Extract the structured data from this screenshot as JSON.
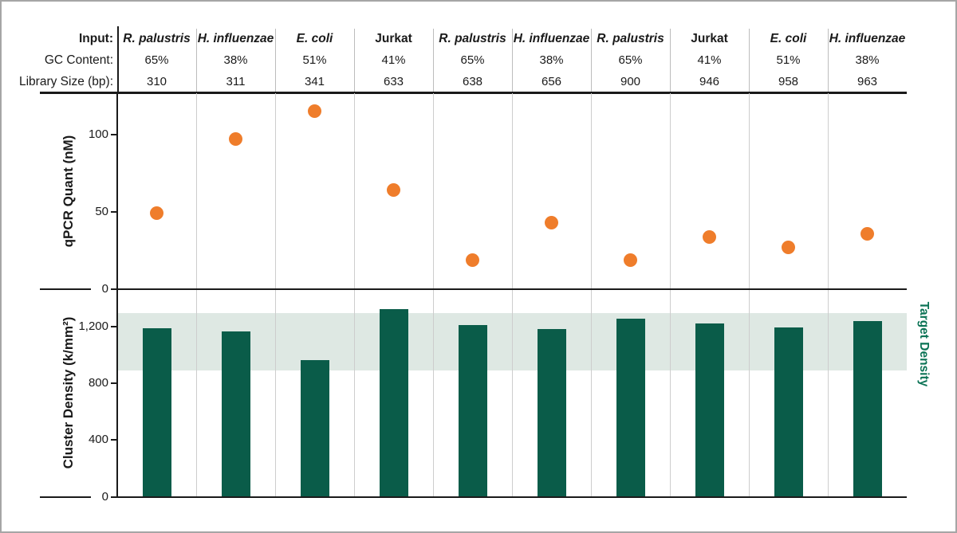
{
  "header": {
    "rows": [
      "Input:",
      "GC Content:",
      "Library Size (bp):"
    ],
    "columns": [
      {
        "input": "R. palustris",
        "italic": true,
        "gc": "65%",
        "library_size": "310"
      },
      {
        "input": "H. influenzae",
        "italic": true,
        "gc": "38%",
        "library_size": "311"
      },
      {
        "input": "E. coli",
        "italic": true,
        "gc": "51%",
        "library_size": "341"
      },
      {
        "input": "Jurkat",
        "italic": false,
        "gc": "41%",
        "library_size": "633"
      },
      {
        "input": "R. palustris",
        "italic": true,
        "gc": "65%",
        "library_size": "638"
      },
      {
        "input": "H. influenzae",
        "italic": true,
        "gc": "38%",
        "library_size": "656"
      },
      {
        "input": "R. palustris",
        "italic": true,
        "gc": "65%",
        "library_size": "900"
      },
      {
        "input": "Jurkat",
        "italic": false,
        "gc": "41%",
        "library_size": "946"
      },
      {
        "input": "E. coli",
        "italic": true,
        "gc": "51%",
        "library_size": "958"
      },
      {
        "input": "H. influenzae",
        "italic": true,
        "gc": "38%",
        "library_size": "963"
      }
    ]
  },
  "colors": {
    "dot_orange": "#EF7D2B",
    "bar_green": "#0A5C49",
    "band_fill": "#DEE8E3",
    "target_label_green": "#0B7355",
    "gridline": "#CDCDCD",
    "axis": "#1A1A1A"
  },
  "chart_data": [
    {
      "type": "scatter",
      "title": "",
      "ylabel": "qPCR Quant (nM)",
      "categories": [
        "R. palustris 310",
        "H. influenzae 311",
        "E. coli 341",
        "Jurkat 633",
        "R. palustris 638",
        "H. influenzae 656",
        "R. palustris 900",
        "Jurkat 946",
        "E. coli 958",
        "H. influenzae 963"
      ],
      "values": [
        49,
        97,
        115,
        64,
        19,
        43,
        19,
        34,
        27,
        36
      ],
      "yticks": [
        0,
        50,
        100
      ],
      "ytick_labels": [
        "0",
        "50",
        "100"
      ],
      "ylim": [
        0,
        127
      ],
      "grid": "vertical-only",
      "legend": "none",
      "marker": "circle"
    },
    {
      "type": "bar",
      "title": "",
      "ylabel": "Cluster Density (k/mm²)",
      "categories": [
        "R. palustris 310",
        "H. influenzae 311",
        "E. coli 341",
        "Jurkat 633",
        "R. palustris 638",
        "H. influenzae 656",
        "R. palustris 900",
        "Jurkat 946",
        "E. coli 958",
        "H. influenzae 963"
      ],
      "values": [
        1185,
        1165,
        960,
        1320,
        1210,
        1180,
        1255,
        1220,
        1190,
        1235
      ],
      "yticks": [
        0,
        400,
        800,
        1200
      ],
      "ytick_labels": [
        "0",
        "400",
        "800",
        "1,200"
      ],
      "ylim": [
        0,
        1465
      ],
      "grid": "vertical-only",
      "legend": "none",
      "target_band": {
        "min": 890,
        "max": 1295,
        "label": "Target Density"
      }
    }
  ]
}
